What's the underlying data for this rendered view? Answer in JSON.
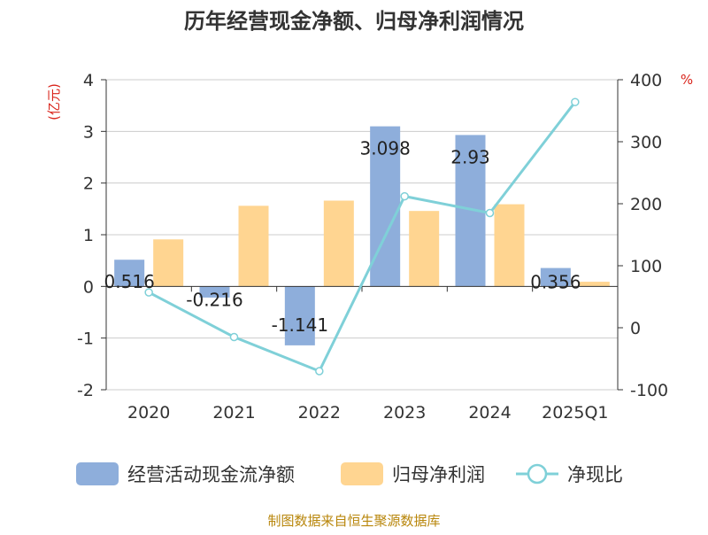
{
  "chart_data": {
    "type": "bar",
    "title": "历年经营现金净额、归母净利润情况",
    "categories": [
      "2020",
      "2021",
      "2022",
      "2023",
      "2024",
      "2025Q1"
    ],
    "y_left": {
      "unit": "(亿元)",
      "ylim": [
        -2,
        4
      ],
      "ticks": [
        -2,
        -1,
        0,
        1,
        2,
        3,
        4
      ]
    },
    "y_right": {
      "unit": "%",
      "ylim": [
        -100,
        400
      ],
      "ticks": [
        -100,
        0,
        100,
        200,
        300,
        400
      ]
    },
    "series": [
      {
        "name": "经营活动现金流净额",
        "type": "bar",
        "axis": "left",
        "color": "#8eaedb",
        "values": [
          0.516,
          -0.216,
          -1.141,
          3.098,
          2.93,
          0.356
        ],
        "labels": [
          "0.516",
          "-0.216",
          "-1.141",
          "3.098",
          "2.93",
          "0.356"
        ]
      },
      {
        "name": "归母净利润",
        "type": "bar",
        "axis": "left",
        "color": "#ffd591",
        "values": [
          0.91,
          1.56,
          1.66,
          1.46,
          1.59,
          0.09
        ]
      },
      {
        "name": "净现比",
        "type": "line",
        "axis": "right",
        "color": "#7fd0d8",
        "values": [
          57,
          -15,
          -70,
          212,
          185,
          364
        ]
      }
    ],
    "grid": true,
    "legend_position": "bottom"
  },
  "source_note": "制图数据来自恒生聚源数据库"
}
